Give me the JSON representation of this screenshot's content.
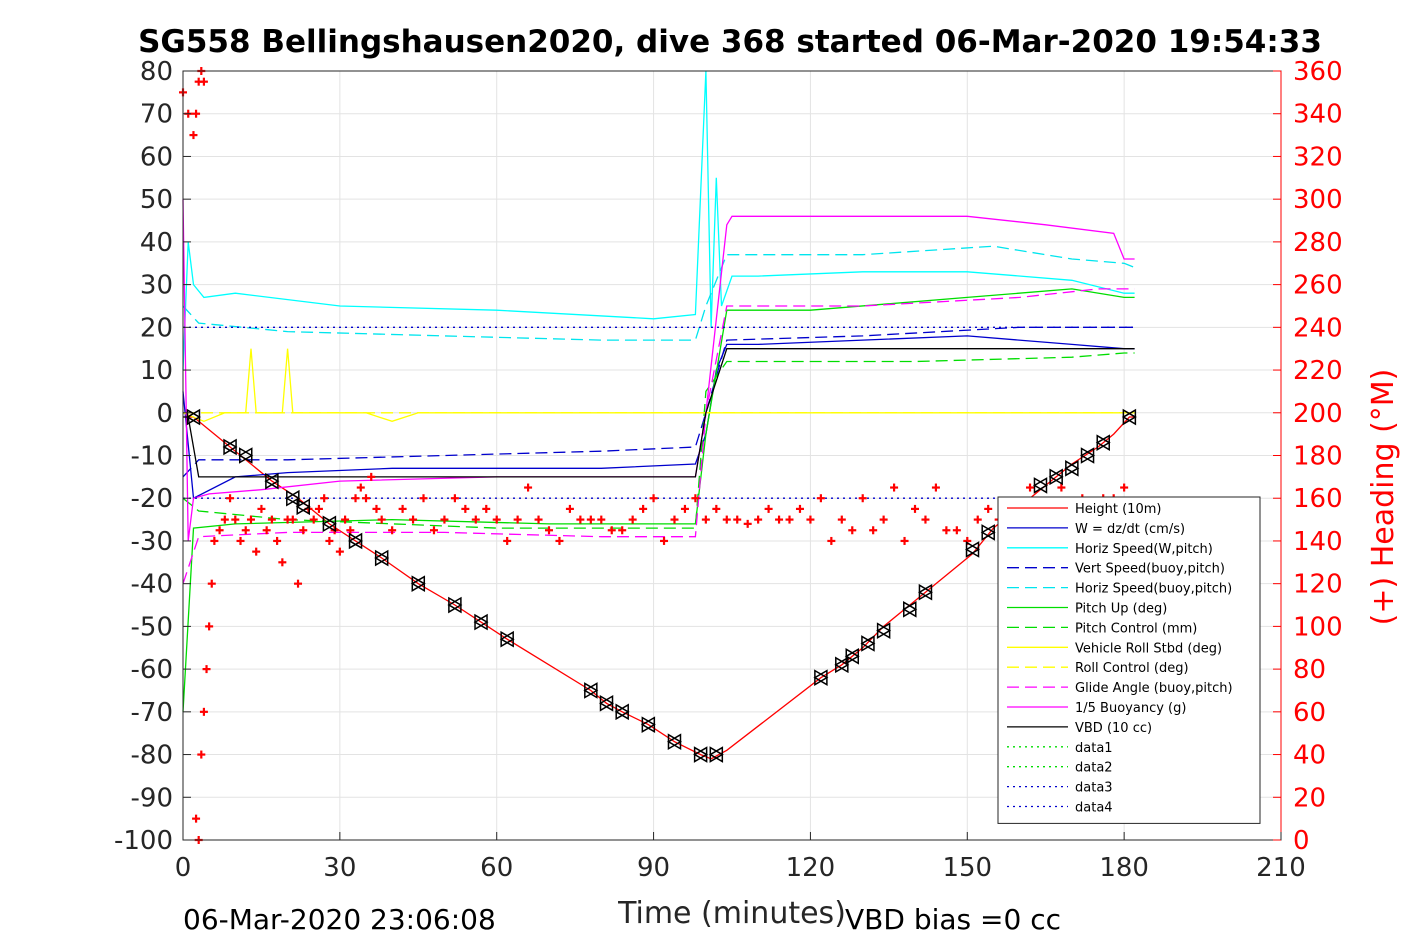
{
  "chart_data": {
    "type": "line",
    "title": "SG558 Bellingshausen2020, dive 368 started 06-Mar-2020 19:54:33",
    "xlabel": "Time (minutes)",
    "ylabel": "",
    "y2label": "(+) Heading (°M)",
    "xlim": [
      0,
      210
    ],
    "ylim": [
      -100,
      80
    ],
    "y2lim": [
      0,
      360
    ],
    "xticks": [
      "0",
      "30",
      "60",
      "90",
      "120",
      "150",
      "180",
      "210"
    ],
    "yticks": [
      "80",
      "70",
      "60",
      "50",
      "40",
      "30",
      "20",
      "10",
      "0",
      "-10",
      "-20",
      "-30",
      "-40",
      "-50",
      "-60",
      "-70",
      "-80",
      "-90",
      "-100"
    ],
    "y2ticks": [
      "360",
      "340",
      "320",
      "300",
      "280",
      "260",
      "240",
      "220",
      "200",
      "180",
      "160",
      "140",
      "120",
      "100",
      "80",
      "60",
      "40",
      "20",
      "0"
    ],
    "grid": true,
    "legend_position": "bottom-right",
    "footer_left": "06-Mar-2020 23:06:08",
    "footer_right": "VBD bias =0 cc",
    "series": [
      {
        "name": "Height (10m)",
        "color": "#ff0000",
        "style": "solid",
        "axis": "left",
        "x": [
          0,
          2,
          9,
          17,
          22,
          28,
          33,
          38,
          45,
          52,
          57,
          62,
          78,
          81,
          84,
          89,
          94,
          99,
          101,
          104,
          122,
          126,
          130,
          134,
          139,
          142,
          151,
          155,
          165,
          170,
          175,
          178,
          181,
          182
        ],
        "y": [
          -1,
          -1,
          -8,
          -16,
          -20,
          -26,
          -30,
          -34,
          -40,
          -45,
          -49,
          -53,
          -65,
          -68,
          -70,
          -73,
          -77,
          -80,
          -81,
          -79,
          -62,
          -59,
          -55,
          -50,
          -45,
          -42,
          -33,
          -27,
          -17,
          -12,
          -8,
          -5,
          -1,
          -1
        ]
      },
      {
        "name": "W = dz/dt (cm/s)",
        "color": "#0000cd",
        "style": "solid",
        "axis": "left",
        "x": [
          0,
          2,
          10,
          20,
          40,
          60,
          80,
          98,
          100,
          102,
          104,
          110,
          130,
          150,
          170,
          180,
          182
        ],
        "y": [
          5,
          -20,
          -15,
          -14,
          -13,
          -13,
          -13,
          -12,
          -5,
          10,
          16,
          16,
          17,
          18,
          16,
          15,
          15
        ]
      },
      {
        "name": "Horiz Speed(W,pitch)",
        "color": "#00ffff",
        "style": "solid",
        "axis": "left",
        "x": [
          0,
          1,
          2,
          4,
          10,
          30,
          60,
          90,
          98,
          100,
          101,
          102,
          103,
          105,
          110,
          130,
          150,
          170,
          180,
          182
        ],
        "y": [
          10,
          40,
          30,
          27,
          28,
          25,
          24,
          22,
          23,
          80,
          20,
          55,
          25,
          32,
          32,
          33,
          33,
          31,
          28,
          28
        ]
      },
      {
        "name": "Vert Speed(buoy,pitch)",
        "color": "#0000cd",
        "style": "dashed",
        "axis": "left",
        "x": [
          0,
          3,
          20,
          50,
          80,
          98,
          100,
          104,
          130,
          160,
          180,
          182
        ],
        "y": [
          -15,
          -11,
          -11,
          -10,
          -9,
          -8,
          0,
          17,
          18,
          20,
          20,
          20
        ]
      },
      {
        "name": "Horiz Speed(buoy,pitch)",
        "color": "#00e5ee",
        "style": "dashed",
        "axis": "left",
        "x": [
          0,
          3,
          20,
          50,
          80,
          98,
          100,
          104,
          130,
          155,
          170,
          180,
          182
        ],
        "y": [
          25,
          21,
          19,
          18,
          17,
          17,
          25,
          37,
          37,
          39,
          36,
          35,
          34
        ]
      },
      {
        "name": "Pitch Up (deg)",
        "color": "#00dd00",
        "style": "solid",
        "axis": "left",
        "x": [
          0,
          2,
          10,
          40,
          70,
          98,
          100,
          104,
          120,
          150,
          170,
          180,
          182
        ],
        "y": [
          -70,
          -27,
          -26,
          -25,
          -26,
          -26,
          -5,
          24,
          24,
          27,
          29,
          27,
          27
        ]
      },
      {
        "name": "Pitch Control (mm)",
        "color": "#00dd00",
        "style": "dashed",
        "axis": "left",
        "x": [
          0,
          3,
          20,
          60,
          98,
          100,
          104,
          140,
          170,
          180,
          182
        ],
        "y": [
          -20,
          -23,
          -25,
          -27,
          -27,
          5,
          12,
          12,
          13,
          14,
          14
        ]
      },
      {
        "name": "Vehicle Roll Stbd (deg)",
        "color": "#ffff00",
        "style": "solid",
        "axis": "left",
        "x": [
          0,
          4,
          8,
          12,
          13,
          14,
          19,
          20,
          21,
          26,
          30,
          35,
          40,
          45,
          60,
          70,
          80,
          90,
          95,
          100,
          102,
          105,
          115,
          120,
          130,
          140,
          150,
          160,
          170,
          180,
          182
        ],
        "y": [
          0,
          -2,
          0,
          0,
          15,
          0,
          0,
          15,
          0,
          0,
          0,
          0,
          -2,
          0,
          0,
          0,
          0,
          0,
          0,
          0,
          0,
          0,
          0,
          0,
          0,
          0,
          0,
          0,
          0,
          0,
          0
        ]
      },
      {
        "name": "Roll Control (deg)",
        "color": "#ffff00",
        "style": "dashed",
        "axis": "left",
        "x": [
          0,
          5,
          10,
          30,
          60,
          98,
          100,
          105,
          130,
          160,
          182
        ],
        "y": [
          0,
          0,
          0,
          0,
          0,
          0,
          0,
          0,
          0,
          0,
          0
        ]
      },
      {
        "name": "Glide Angle (buoy,pitch)",
        "color": "#ff00ff",
        "style": "dashed",
        "axis": "left",
        "x": [
          0,
          3,
          20,
          50,
          80,
          98,
          100,
          104,
          130,
          160,
          175,
          182
        ],
        "y": [
          -40,
          -29,
          -28,
          -28,
          -29,
          -29,
          0,
          25,
          25,
          27,
          29,
          29
        ]
      },
      {
        "name": "1/5 Buoyancy (g)",
        "color": "#ff00ff",
        "style": "solid",
        "axis": "left",
        "x": [
          0,
          1,
          2,
          5,
          15,
          30,
          60,
          90,
          98,
          100,
          104,
          105,
          120,
          150,
          165,
          178,
          180,
          182
        ],
        "y": [
          50,
          -30,
          -20,
          -19,
          -18,
          -16,
          -15,
          -15,
          -15,
          0,
          44,
          46,
          46,
          46,
          44,
          42,
          36,
          36
        ]
      },
      {
        "name": "VBD (10 cc)",
        "color": "#000000",
        "style": "solid",
        "axis": "left",
        "x": [
          0,
          1,
          3,
          10,
          60,
          98,
          100,
          104,
          120,
          150,
          180,
          182
        ],
        "y": [
          -1,
          -1,
          -15,
          -15,
          -15,
          -15,
          0,
          15,
          15,
          15,
          15,
          15
        ]
      },
      {
        "name": "data1",
        "color": "#00dd00",
        "style": "dotted",
        "axis": "left",
        "x": [],
        "y": []
      },
      {
        "name": "data2",
        "color": "#00dd00",
        "style": "dotted",
        "axis": "left",
        "x": [],
        "y": []
      },
      {
        "name": "data3",
        "color": "#0000cd",
        "style": "dotted",
        "axis": "left",
        "x": [
          0,
          3,
          98,
          100,
          182
        ],
        "y": [
          20,
          20,
          20,
          20,
          20
        ]
      },
      {
        "name": "data4",
        "color": "#0000cd",
        "style": "dotted",
        "axis": "left",
        "x": [
          0,
          3,
          100,
          104,
          182
        ],
        "y": [
          -20,
          -20,
          -20,
          -20,
          -20
        ]
      }
    ],
    "heading_points": {
      "axis": "right",
      "color": "#ff0000",
      "marker": "+",
      "x": [
        0,
        1,
        2,
        2.5,
        3,
        3.5,
        4,
        2.5,
        3,
        3.5,
        4,
        4.5,
        5,
        5.5,
        6,
        7,
        8,
        9,
        10,
        11,
        12,
        13,
        14,
        15,
        16,
        17,
        18,
        19,
        20,
        21,
        22,
        23,
        24,
        25,
        26,
        27,
        28,
        29,
        30,
        31,
        32,
        33,
        34,
        35,
        36,
        37,
        38,
        40,
        42,
        44,
        46,
        48,
        50,
        52,
        54,
        56,
        58,
        60,
        62,
        64,
        66,
        68,
        70,
        72,
        74,
        76,
        78,
        80,
        82,
        84,
        86,
        88,
        90,
        92,
        94,
        96,
        98,
        100,
        102,
        104,
        106,
        108,
        110,
        112,
        114,
        116,
        118,
        120,
        122,
        124,
        126,
        128,
        130,
        132,
        134,
        136,
        138,
        140,
        142,
        144,
        146,
        148,
        150,
        152,
        154,
        156,
        158,
        160,
        162,
        164,
        166,
        168,
        170,
        172,
        174,
        176,
        178,
        180
      ],
      "y": [
        350,
        340,
        330,
        340,
        355,
        360,
        355,
        10,
        0,
        40,
        60,
        80,
        100,
        120,
        140,
        145,
        150,
        160,
        150,
        140,
        145,
        150,
        135,
        155,
        145,
        150,
        140,
        130,
        150,
        150,
        120,
        145,
        155,
        150,
        155,
        160,
        140,
        145,
        135,
        150,
        145,
        160,
        165,
        160,
        170,
        155,
        150,
        145,
        155,
        150,
        160,
        145,
        150,
        160,
        155,
        150,
        155,
        150,
        140,
        150,
        165,
        150,
        145,
        140,
        155,
        150,
        150,
        150,
        145,
        145,
        150,
        155,
        160,
        140,
        150,
        155,
        160,
        150,
        155,
        150,
        150,
        148,
        150,
        155,
        150,
        150,
        155,
        150,
        160,
        140,
        150,
        145,
        160,
        145,
        150,
        165,
        140,
        155,
        150,
        165,
        145,
        145,
        140,
        150,
        155,
        150,
        145,
        150,
        165,
        155,
        150,
        165,
        150,
        160,
        155,
        160,
        160,
        165
      ]
    },
    "triangle_points": {
      "axis": "left",
      "color": "#000000",
      "x": [
        2,
        9,
        12,
        17,
        21,
        23,
        28,
        33,
        38,
        45,
        52,
        57,
        62,
        78,
        81,
        84,
        89,
        94,
        99,
        102,
        122,
        126,
        128,
        131,
        134,
        139,
        142,
        151,
        154,
        164,
        167,
        170,
        173,
        176,
        181
      ],
      "y": [
        -1,
        -8,
        -10,
        -16,
        -20,
        -22,
        -26,
        -30,
        -34,
        -40,
        -45,
        -49,
        -53,
        -65,
        -68,
        -70,
        -73,
        -77,
        -80,
        -80,
        -62,
        -59,
        -57,
        -54,
        -51,
        -46,
        -42,
        -32,
        -28,
        -17,
        -15,
        -13,
        -10,
        -7,
        -1
      ]
    }
  }
}
